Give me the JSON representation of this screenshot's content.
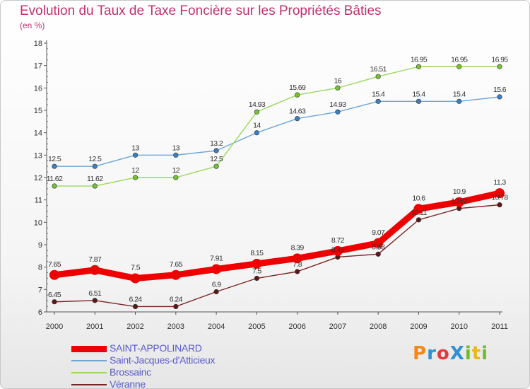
{
  "title": "Evolution du Taux de Taxe Foncière sur les Propriétés Bâties",
  "subtitle": "(en %)",
  "logo_text": "ProXiti",
  "logo_colors": [
    "#f08a1c",
    "#2f8fd8",
    "#e23b3b",
    "#2f8fd8",
    "#6dbb2e",
    "#e7b81e",
    "#6dbb2e"
  ],
  "chart_data": {
    "type": "line",
    "x": [
      "2000",
      "2001",
      "2002",
      "2003",
      "2004",
      "2005",
      "2006",
      "2007",
      "2008",
      "2009",
      "2010",
      "2011"
    ],
    "ylim": [
      6,
      18
    ],
    "yticks": [
      "6",
      "7",
      "8",
      "9",
      "10",
      "11",
      "12",
      "13",
      "14",
      "15",
      "16",
      "17",
      "18"
    ],
    "grid": false,
    "legend_position": "bottom-left",
    "series": [
      {
        "name": "SAINT-APPOLINARD",
        "color": "#ee0000",
        "marker_color": "#ee0000",
        "values": [
          7.65,
          7.87,
          7.5,
          7.65,
          7.91,
          8.15,
          8.39,
          8.72,
          9.07,
          10.6,
          10.9,
          11.3
        ],
        "labels": [
          "7.65",
          "7.87",
          "7.5",
          "7.65",
          "7.91",
          "8.15",
          "8.39",
          "8.72",
          "9.07",
          "10.6",
          "10.9",
          "11.3"
        ]
      },
      {
        "name": "Saint-Jacques-d'Atticieux",
        "color": "#6ea6d4",
        "marker_color": "#3a80c2",
        "values": [
          12.5,
          12.5,
          13,
          13,
          13.2,
          14,
          14.63,
          14.93,
          15.4,
          15.4,
          15.4,
          15.6
        ],
        "labels": [
          "12.5",
          "12.5",
          "13",
          "13",
          "13.2",
          "14",
          "14.63",
          "14.93",
          "15.4",
          "15.4",
          "15.4",
          "15.6"
        ]
      },
      {
        "name": "Brossainc",
        "color": "#9cd85c",
        "marker_color": "#74c236",
        "values": [
          11.62,
          11.62,
          12,
          12,
          12.5,
          14.93,
          15.69,
          16,
          16.51,
          16.95,
          16.95,
          16.95
        ],
        "labels": [
          "11.62",
          "11.62",
          "12",
          "12",
          "12.5",
          "14.93",
          "15.69",
          "16",
          "16.51",
          "16.95",
          "16.95",
          "16.95"
        ]
      },
      {
        "name": "Véranne",
        "color": "#7a2626",
        "marker_color": "#5a1818",
        "values": [
          6.45,
          6.51,
          6.24,
          6.24,
          6.9,
          7.5,
          7.8,
          8.45,
          8.58,
          10.11,
          10.62,
          10.78
        ],
        "labels": [
          "6.45",
          "6.51",
          "6.24",
          "6.24",
          "6.9",
          "7.5",
          "7.8",
          "8.45",
          "8.58",
          "10.11",
          "10.62",
          "10.78"
        ]
      }
    ]
  }
}
